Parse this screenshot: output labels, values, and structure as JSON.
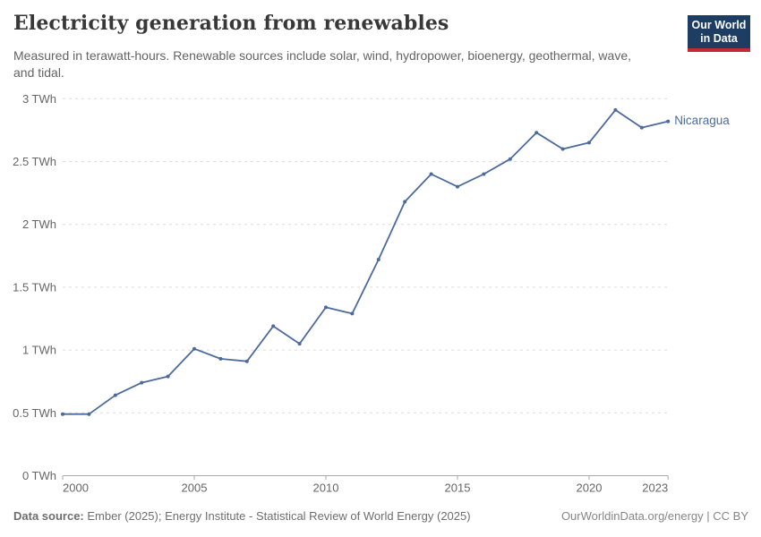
{
  "header": {
    "title": "Electricity generation from renewables",
    "subtitle": "Measured in terawatt-hours. Renewable sources include solar, wind, hydropower, bioenergy, geothermal, wave, and tidal.",
    "logo_line1": "Our World",
    "logo_line2": "in Data",
    "logo_bg_color": "#1d3d63",
    "logo_stripe_color": "#c42a33"
  },
  "chart_data": {
    "type": "line",
    "title": "Electricity generation from renewables",
    "unit": "TWh",
    "xlabel": "",
    "ylabel": "",
    "xlim": [
      2000,
      2023
    ],
    "ylim": [
      0,
      3
    ],
    "grid": "horizontal-dashed",
    "legend_position": "end-of-line-label",
    "x": [
      2000,
      2001,
      2002,
      2003,
      2004,
      2005,
      2006,
      2007,
      2008,
      2009,
      2010,
      2011,
      2012,
      2013,
      2014,
      2015,
      2016,
      2017,
      2018,
      2019,
      2020,
      2021,
      2022,
      2023
    ],
    "series": [
      {
        "name": "Nicaragua",
        "color": "#4C6A9C",
        "values": [
          0.49,
          0.49,
          0.64,
          0.74,
          0.79,
          1.01,
          0.93,
          0.91,
          1.19,
          1.05,
          1.34,
          1.29,
          1.72,
          2.18,
          2.4,
          2.3,
          2.4,
          2.52,
          2.73,
          2.6,
          2.65,
          2.91,
          2.77,
          2.82
        ]
      }
    ],
    "yticks": [
      {
        "value": 0,
        "label": "0 TWh"
      },
      {
        "value": 0.5,
        "label": "0.5 TWh"
      },
      {
        "value": 1,
        "label": "1 TWh"
      },
      {
        "value": 1.5,
        "label": "1.5 TWh"
      },
      {
        "value": 2,
        "label": "2 TWh"
      },
      {
        "value": 2.5,
        "label": "2.5 TWh"
      },
      {
        "value": 3,
        "label": "3 TWh"
      }
    ],
    "xticks": [
      2000,
      2005,
      2010,
      2015,
      2020,
      2023
    ]
  },
  "footer": {
    "source_label": "Data source:",
    "source_text": " Ember (2025); Energy Institute - Statistical Review of World Energy (2025)",
    "credit": "OurWorldinData.org/energy | CC BY"
  },
  "colors": {
    "line": "#4C6A9C",
    "gridline": "#dcdcdc",
    "axis": "#a8a8a8",
    "tick_text": "#666666"
  }
}
